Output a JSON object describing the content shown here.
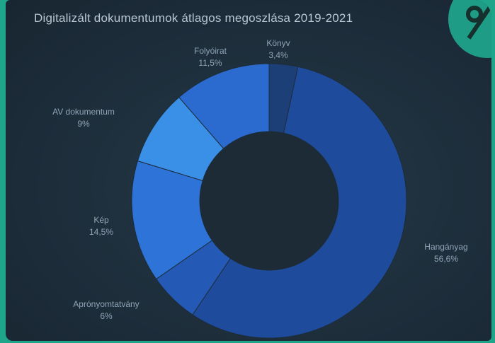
{
  "chart_data": {
    "type": "pie",
    "title": "Digitalizált dokumentumok átlagos megoszlása 2019-2021",
    "categories": [
      "Könyv",
      "Hangányag",
      "Aprónyomtatvány",
      "Kép",
      "AV dokumentum",
      "Folyóirat"
    ],
    "values": [
      3.4,
      56.6,
      6,
      14.5,
      9,
      11.5
    ],
    "value_labels": [
      "3,4%",
      "56,6%",
      "6%",
      "14,5%",
      "9%",
      "11,5%"
    ],
    "colors": [
      "#1c3f78",
      "#1e4b9c",
      "#2559b6",
      "#2e74d8",
      "#3a8fe6",
      "#2b6bd0"
    ],
    "donut": true,
    "legend": "none"
  },
  "header": {
    "icon": "percent-badge-icon"
  }
}
